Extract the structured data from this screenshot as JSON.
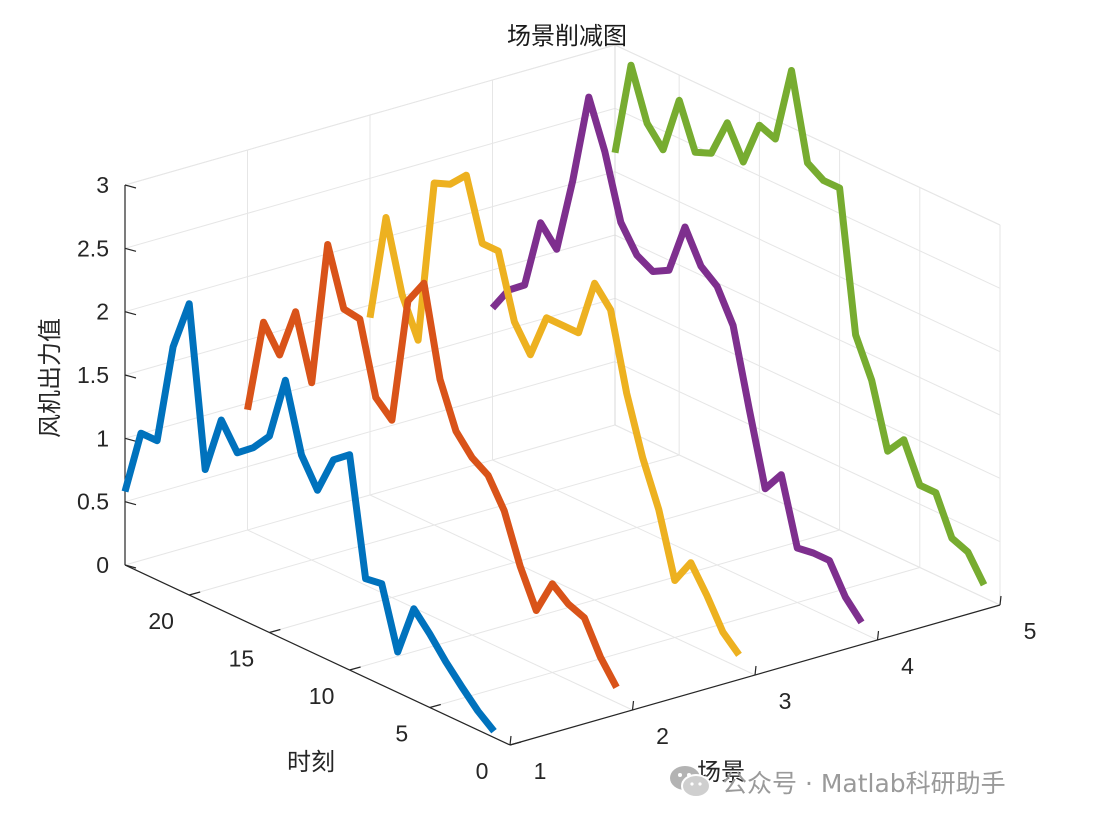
{
  "chart_data": {
    "type": "line",
    "title": "场景削减图",
    "xlabel": "场景",
    "ylabel": "时刻",
    "zlabel": "风机出力值",
    "x_ticks": [
      1,
      2,
      3,
      4,
      5
    ],
    "y_ticks": [
      0,
      5,
      10,
      15,
      20
    ],
    "z_ticks": [
      "0",
      "0.5",
      "1",
      "1.5",
      "2",
      "2.5",
      "3"
    ],
    "xlim": [
      1,
      5
    ],
    "ylim": [
      0,
      24
    ],
    "zlim": [
      0,
      3
    ],
    "grid": true,
    "series": [
      {
        "x": 1,
        "color": "#0072BD",
        "values": [
          0.05,
          0.15,
          0.28,
          0.42,
          0.58,
          0.72,
          0.32,
          0.8,
          0.78,
          1.7,
          1.6,
          1.3,
          1.52,
          2.05,
          1.55,
          1.4,
          1.3,
          1.5,
          1.05,
          2.3,
          1.9,
          1.1,
          1.1,
          0.58
        ]
      },
      {
        "x": 2,
        "color": "#D95319",
        "values": [
          0.12,
          0.3,
          0.55,
          0.6,
          0.7,
          0.43,
          0.72,
          1.1,
          1.32,
          1.4,
          1.55,
          1.9,
          2.6,
          2.4,
          1.4,
          1.52,
          2.08,
          2.1,
          2.55,
          1.4,
          1.9,
          1.5,
          1.7,
          0.95
        ]
      },
      {
        "x": 3,
        "color": "#EDB120",
        "values": [
          0.1,
          0.22,
          0.45,
          0.65,
          0.45,
          0.95,
          1.3,
          1.75,
          2.35,
          2.5,
          2.05,
          2.05,
          2.05,
          1.7,
          1.9,
          2.4,
          2.4,
          2.88,
          2.75,
          2.7,
          1.4,
          1.7,
          2.25,
          1.4
        ]
      },
      {
        "x": 4,
        "color": "#7E2F8E",
        "values": [
          0.08,
          0.22,
          0.45,
          0.45,
          0.43,
          0.95,
          0.78,
          1.35,
          1.95,
          2.2,
          2.3,
          2.55,
          2.15,
          2.08,
          2.15,
          2.35,
          2.85,
          3.22,
          2.5,
          1.9,
          2.05,
          1.5,
          1.4,
          1.2
        ]
      },
      {
        "x": 5,
        "color": "#77AC30",
        "values": [
          0.1,
          0.3,
          0.35,
          0.65,
          0.65,
          0.95,
          0.8,
          1.3,
          1.6,
          2.7,
          2.7,
          2.78,
          3.45,
          2.85,
          2.9,
          2.55,
          2.8,
          2.5,
          2.45,
          2.8,
          2.35,
          2.5,
          2.9,
          2.15
        ]
      }
    ]
  },
  "watermark": {
    "text": "公众号 · Matlab科研助手",
    "icon": "wechat-icon"
  }
}
